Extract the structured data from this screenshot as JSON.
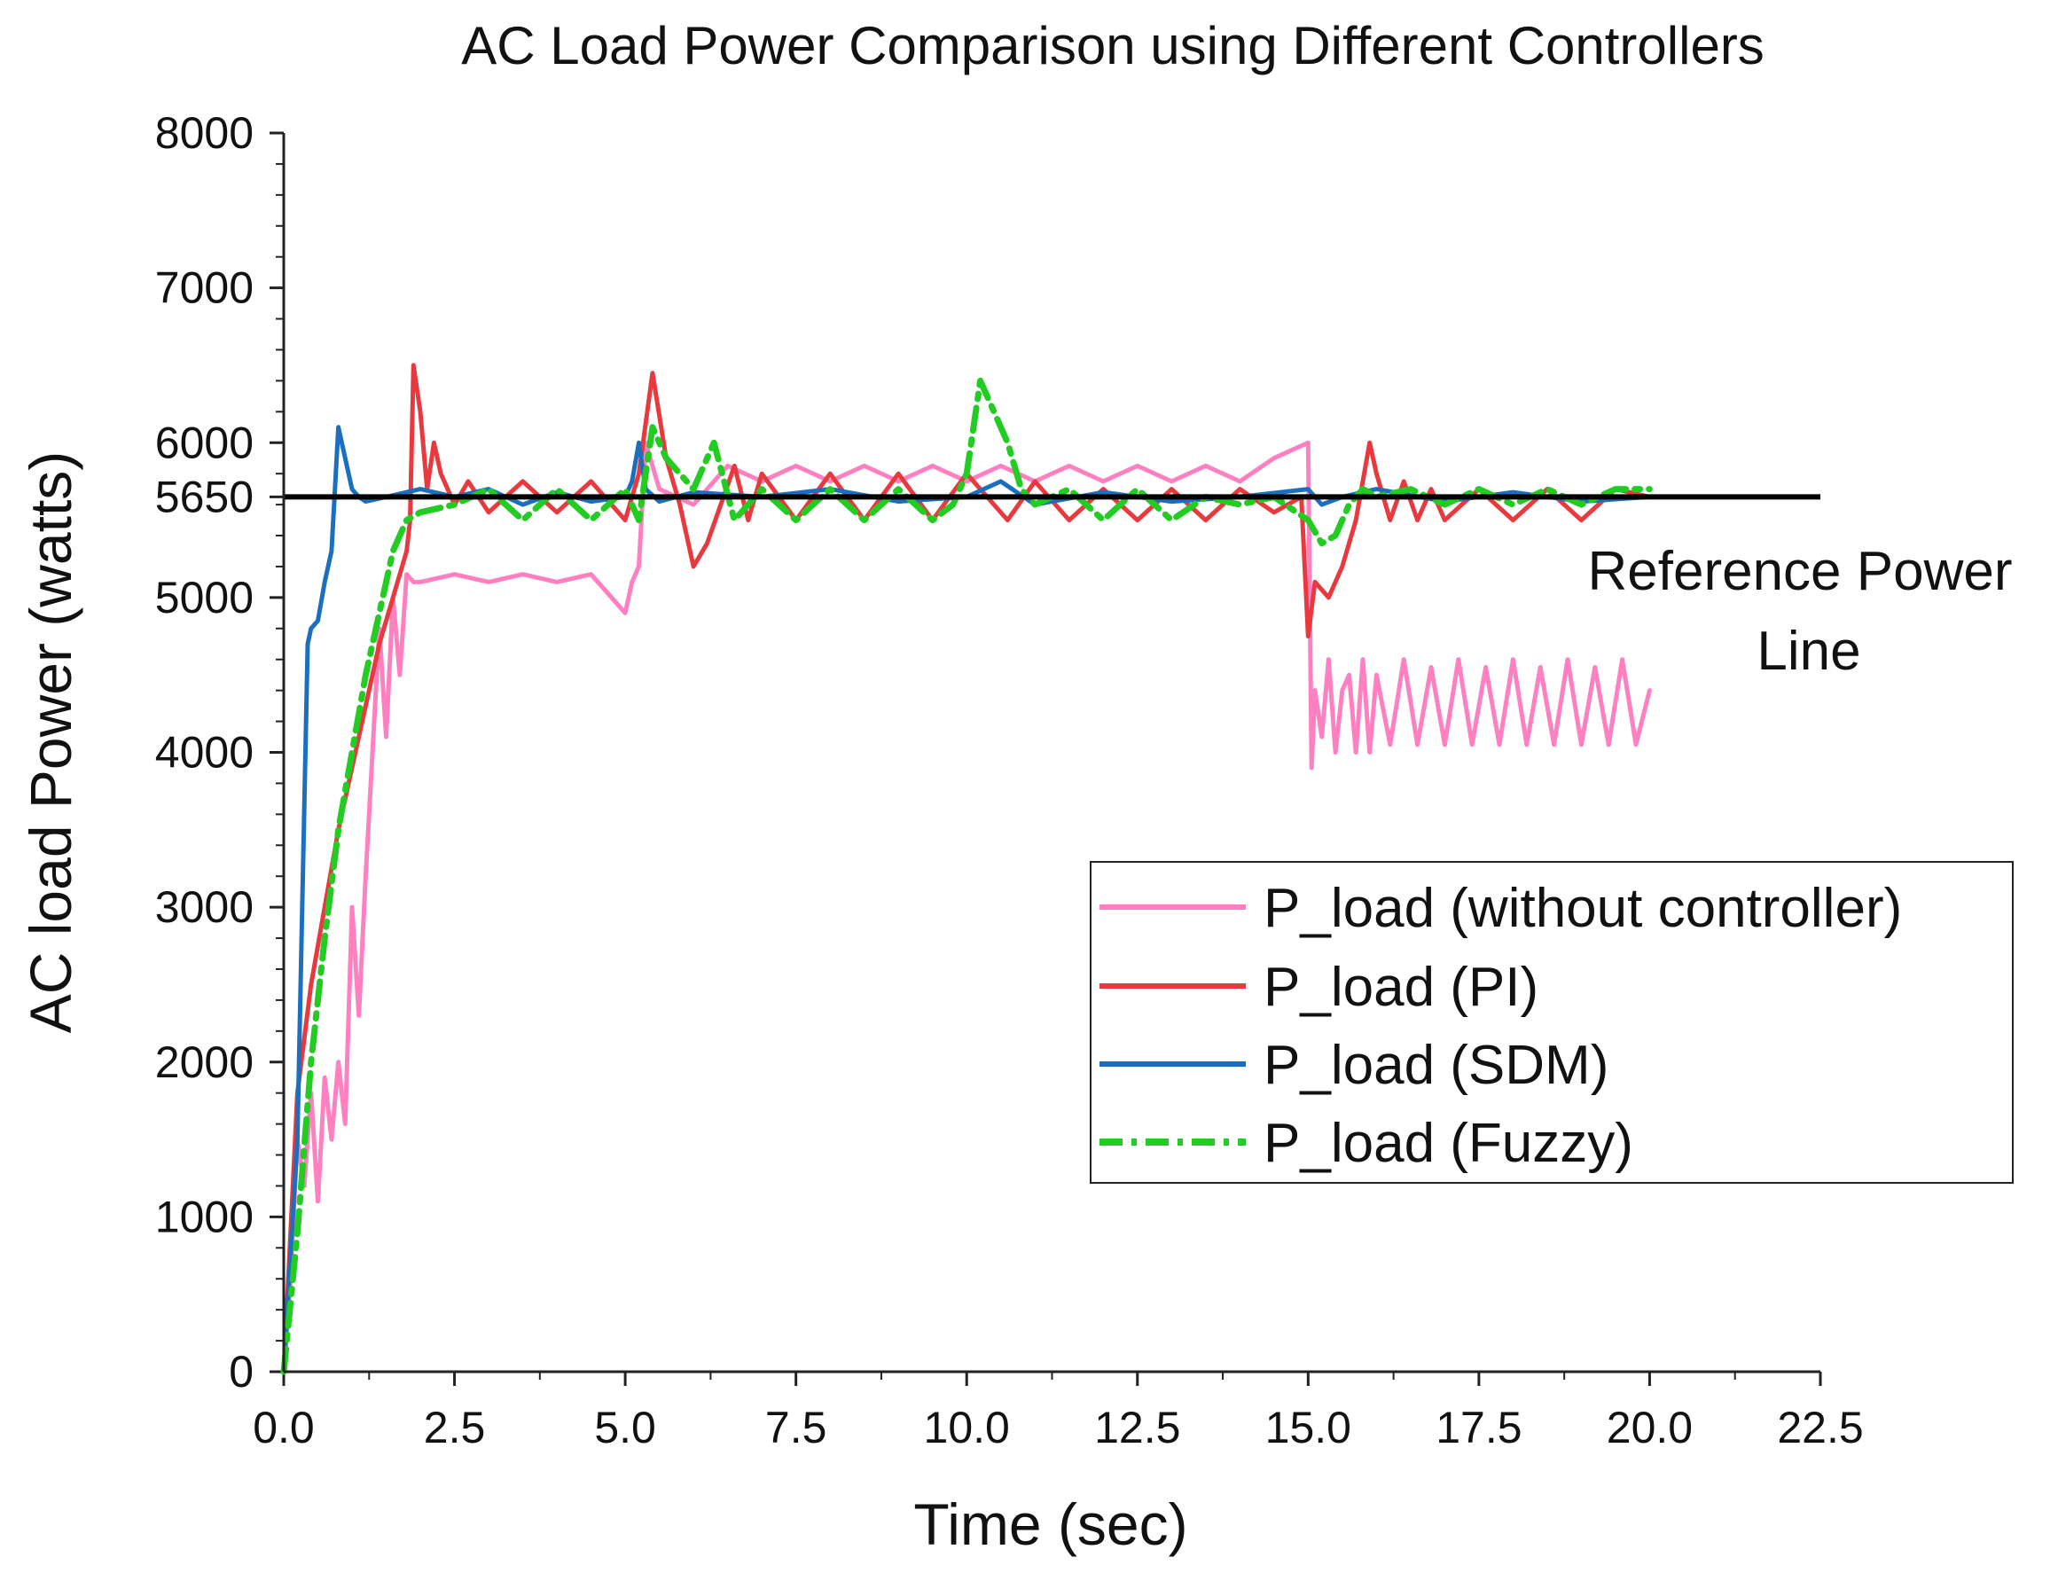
{
  "chart_data": {
    "type": "line",
    "title": "AC Load Power Comparison using Different Controllers",
    "xlabel": "Time (sec)",
    "ylabel": "AC load Power (watts)",
    "xlim": [
      0,
      22.5
    ],
    "ylim": [
      0,
      8000
    ],
    "xticks": [
      0,
      2.5,
      5,
      7.5,
      10,
      12.5,
      15,
      17.5,
      20,
      22.5
    ],
    "xtick_labels": [
      "0.0",
      "2.5",
      "5.0",
      "7.5",
      "10.0",
      "12.5",
      "15.0",
      "17.5",
      "20.0",
      "22.5"
    ],
    "yticks": [
      0,
      1000,
      2000,
      3000,
      4000,
      5000,
      5650,
      6000,
      7000,
      8000
    ],
    "ytick_labels": [
      "0",
      "1000",
      "2000",
      "3000",
      "4000",
      "5000",
      "5650",
      "6000",
      "7000",
      "8000"
    ],
    "grid": false,
    "legend_position": "center-right",
    "reference": {
      "value": 5650,
      "x_range": [
        0,
        22.5
      ],
      "color": "#000000",
      "label_line1": "Reference Power",
      "label_line2": "Line"
    },
    "series": [
      {
        "name": "P_load (without controller)",
        "color": "#ff80c0",
        "dash": "solid",
        "x": [
          0,
          0.1,
          0.2,
          0.3,
          0.4,
          0.5,
          0.6,
          0.7,
          0.8,
          0.9,
          1.0,
          1.1,
          1.2,
          1.3,
          1.4,
          1.5,
          1.6,
          1.7,
          1.8,
          1.9,
          2.0,
          2.5,
          3.0,
          3.5,
          4.0,
          4.5,
          5.0,
          5.1,
          5.2,
          5.3,
          5.5,
          6.0,
          6.5,
          7.0,
          7.5,
          8.0,
          8.5,
          9.0,
          9.5,
          10.0,
          10.5,
          11.0,
          11.5,
          12.0,
          12.5,
          13.0,
          13.5,
          14.0,
          14.5,
          15.0,
          15.05,
          15.1,
          15.2,
          15.3,
          15.4,
          15.5,
          15.6,
          15.7,
          15.8,
          15.9,
          16.0,
          16.2,
          16.4,
          16.6,
          16.8,
          17.0,
          17.2,
          17.4,
          17.6,
          17.8,
          18.0,
          18.2,
          18.4,
          18.6,
          18.8,
          19.0,
          19.2,
          19.4,
          19.6,
          19.8,
          20.0
        ],
        "values": [
          0,
          600,
          1500,
          1200,
          1800,
          1100,
          1900,
          1500,
          2000,
          1600,
          3000,
          2300,
          3200,
          4000,
          4800,
          4100,
          5000,
          4500,
          5150,
          5100,
          5100,
          5150,
          5100,
          5150,
          5100,
          5150,
          4900,
          5100,
          5200,
          6000,
          5700,
          5600,
          5850,
          5750,
          5850,
          5750,
          5850,
          5750,
          5850,
          5750,
          5850,
          5750,
          5850,
          5750,
          5850,
          5750,
          5850,
          5750,
          5900,
          6000,
          3900,
          4400,
          4100,
          4600,
          4000,
          4400,
          4500,
          4000,
          4600,
          4000,
          4500,
          4050,
          4600,
          4050,
          4550,
          4050,
          4600,
          4050,
          4550,
          4050,
          4600,
          4050,
          4550,
          4050,
          4600,
          4050,
          4550,
          4050,
          4600,
          4050,
          4400
        ]
      },
      {
        "name": "P_load (PI)",
        "color": "#e8393e",
        "dash": "solid",
        "x": [
          0,
          0.2,
          0.4,
          0.6,
          0.8,
          1.0,
          1.2,
          1.4,
          1.6,
          1.8,
          1.85,
          1.9,
          2.0,
          2.1,
          2.2,
          2.3,
          2.5,
          2.7,
          3.0,
          3.5,
          4.0,
          4.5,
          5.0,
          5.2,
          5.4,
          5.6,
          5.8,
          6.0,
          6.2,
          6.4,
          6.6,
          6.8,
          7.0,
          7.5,
          8.0,
          8.5,
          9.0,
          9.5,
          10.0,
          10.3,
          10.6,
          11.0,
          11.5,
          12.0,
          12.5,
          13.0,
          13.5,
          14.0,
          14.5,
          14.9,
          15.0,
          15.1,
          15.3,
          15.5,
          15.7,
          15.9,
          16.0,
          16.2,
          16.4,
          16.6,
          16.8,
          17.0,
          17.5,
          18.0,
          18.5,
          19.0,
          19.5,
          20.0
        ],
        "values": [
          0,
          1800,
          2500,
          3000,
          3500,
          3900,
          4300,
          4700,
          5000,
          5300,
          5500,
          6500,
          6200,
          5700,
          6000,
          5800,
          5600,
          5750,
          5550,
          5750,
          5550,
          5750,
          5500,
          5800,
          6450,
          5900,
          5600,
          5200,
          5350,
          5600,
          5850,
          5500,
          5800,
          5500,
          5800,
          5500,
          5800,
          5500,
          5800,
          5650,
          5500,
          5750,
          5500,
          5700,
          5500,
          5700,
          5500,
          5700,
          5550,
          5650,
          4750,
          5100,
          5000,
          5200,
          5500,
          6000,
          5800,
          5500,
          5750,
          5500,
          5700,
          5500,
          5700,
          5500,
          5700,
          5500,
          5700,
          5650
        ]
      },
      {
        "name": "P_load (SDM)",
        "color": "#1c6fbf",
        "dash": "solid",
        "x": [
          0,
          0.2,
          0.35,
          0.4,
          0.5,
          0.6,
          0.7,
          0.8,
          0.9,
          1.0,
          1.1,
          1.2,
          1.5,
          2.0,
          2.5,
          3.0,
          3.5,
          4.0,
          4.5,
          5.0,
          5.1,
          5.2,
          5.3,
          5.5,
          6.0,
          7.0,
          8.0,
          9.0,
          10.0,
          10.5,
          11.0,
          12.0,
          13.0,
          14.0,
          15.0,
          15.2,
          15.5,
          16.0,
          17.0,
          18.0,
          19.0,
          20.0
        ],
        "values": [
          0,
          1500,
          4700,
          4800,
          4850,
          5100,
          5300,
          6100,
          5900,
          5700,
          5650,
          5620,
          5650,
          5700,
          5650,
          5700,
          5600,
          5680,
          5620,
          5650,
          5750,
          6000,
          5700,
          5620,
          5680,
          5650,
          5700,
          5620,
          5650,
          5750,
          5600,
          5680,
          5620,
          5650,
          5700,
          5600,
          5650,
          5700,
          5620,
          5680,
          5620,
          5650
        ]
      },
      {
        "name": "P_load (Fuzzy)",
        "color": "#22cc22",
        "dash": "dashdot",
        "x": [
          0,
          0.2,
          0.4,
          0.6,
          0.8,
          1.0,
          1.2,
          1.4,
          1.6,
          1.8,
          2.0,
          2.5,
          3.0,
          3.5,
          4.0,
          4.5,
          5.0,
          5.2,
          5.4,
          5.6,
          5.8,
          6.0,
          6.3,
          6.6,
          7.0,
          7.5,
          8.0,
          8.5,
          9.0,
          9.5,
          9.8,
          10.0,
          10.2,
          10.4,
          10.6,
          10.8,
          11.0,
          11.5,
          12.0,
          12.5,
          13.0,
          13.5,
          14.0,
          14.5,
          15.0,
          15.2,
          15.4,
          15.6,
          15.8,
          16.0,
          16.5,
          17.0,
          17.5,
          18.0,
          18.5,
          19.0,
          19.5,
          20.0
        ],
        "values": [
          0,
          900,
          2000,
          2800,
          3500,
          4000,
          4500,
          4900,
          5300,
          5500,
          5550,
          5600,
          5700,
          5500,
          5700,
          5500,
          5700,
          5500,
          6100,
          5900,
          5800,
          5700,
          6000,
          5500,
          5700,
          5500,
          5700,
          5500,
          5700,
          5500,
          5600,
          5800,
          6400,
          6200,
          6000,
          5700,
          5600,
          5700,
          5500,
          5700,
          5500,
          5650,
          5600,
          5650,
          5500,
          5350,
          5400,
          5600,
          5700,
          5650,
          5700,
          5600,
          5700,
          5600,
          5700,
          5600,
          5700,
          5700
        ]
      }
    ]
  }
}
